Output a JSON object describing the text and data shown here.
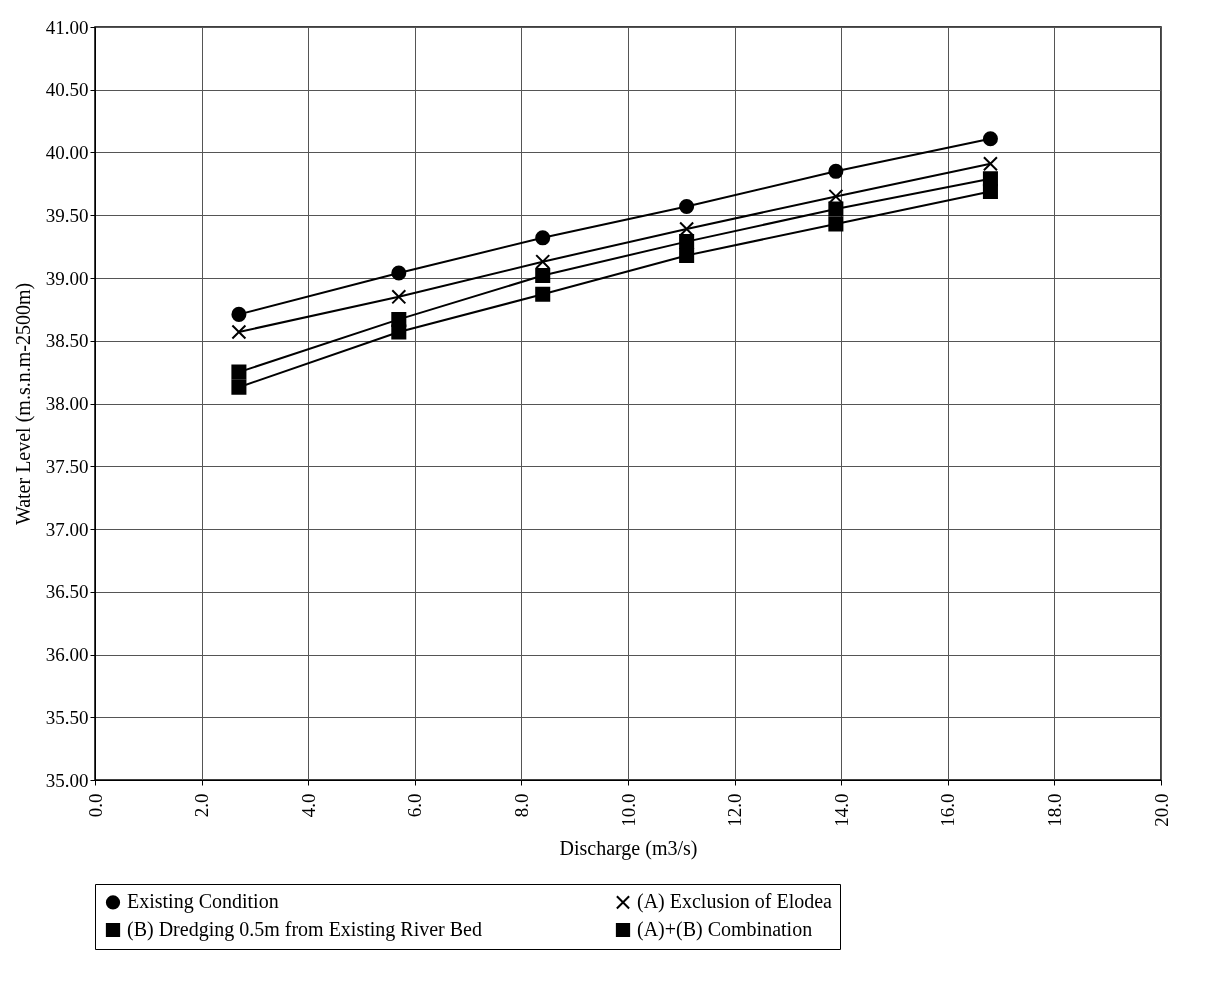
{
  "chart_data": {
    "type": "line",
    "xlabel": "Discharge (m3/s)",
    "ylabel": "Water Level (m.s.n.m-2500m)",
    "xlim": [
      0,
      20
    ],
    "xticks": [
      {
        "value": 0,
        "label": "0.0"
      },
      {
        "value": 2,
        "label": "2.0"
      },
      {
        "value": 4,
        "label": "4.0"
      },
      {
        "value": 6,
        "label": "6.0"
      },
      {
        "value": 8,
        "label": "8.0"
      },
      {
        "value": 10,
        "label": "10.0"
      },
      {
        "value": 12,
        "label": "12.0"
      },
      {
        "value": 14,
        "label": "14.0"
      },
      {
        "value": 16,
        "label": "16.0"
      },
      {
        "value": 18,
        "label": "18.0"
      },
      {
        "value": 20,
        "label": "20.0"
      }
    ],
    "ylim": [
      35,
      41
    ],
    "yticks": [
      {
        "value": 35,
        "label": "35.00"
      },
      {
        "value": 35.5,
        "label": "35.50"
      },
      {
        "value": 36,
        "label": "36.00"
      },
      {
        "value": 36.5,
        "label": "36.50"
      },
      {
        "value": 37,
        "label": "37.00"
      },
      {
        "value": 37.5,
        "label": "37.50"
      },
      {
        "value": 38,
        "label": "38.00"
      },
      {
        "value": 38.5,
        "label": "38.50"
      },
      {
        "value": 39,
        "label": "39.00"
      },
      {
        "value": 39.5,
        "label": "39.50"
      },
      {
        "value": 40,
        "label": "40.00"
      },
      {
        "value": 40.5,
        "label": "40.50"
      },
      {
        "value": 41,
        "label": "41.00"
      }
    ],
    "x": [
      2.7,
      5.7,
      8.4,
      11.1,
      13.9,
      16.8
    ],
    "grid": true,
    "legend": "bottom",
    "line_style": "solid",
    "series": [
      {
        "name": "Existing Condition",
        "color": "#000000",
        "marker": "circle",
        "values": [
          38.71,
          39.04,
          39.32,
          39.57,
          39.85,
          40.11
        ]
      },
      {
        "name": "(A) Exclusion of Elodea",
        "color": "#000000",
        "marker": "cross",
        "values": [
          38.57,
          38.85,
          39.13,
          39.39,
          39.65,
          39.91
        ]
      },
      {
        "name": "(B)   Dredging 0.5m from Existing River Bed",
        "color": "#000000",
        "marker": "square",
        "values": [
          38.25,
          38.67,
          39.02,
          39.29,
          39.55,
          39.79
        ]
      },
      {
        "name": "(A)+(B)    Combination",
        "color": "#000000",
        "marker": "square",
        "values": [
          38.13,
          38.57,
          38.87,
          39.18,
          39.43,
          39.69
        ]
      }
    ]
  }
}
